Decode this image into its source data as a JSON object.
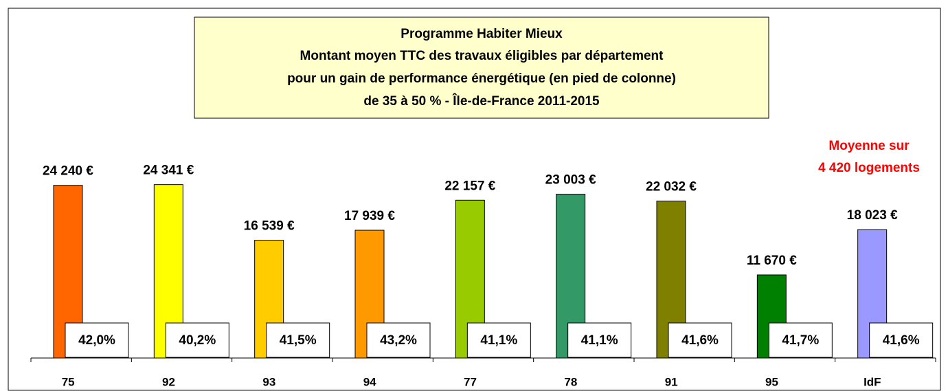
{
  "chart_data": {
    "type": "bar",
    "title": [
      "Programme Habiter Mieux",
      "Montant moyen TTC des travaux éligibles par département",
      "pour un gain de performance énergétique (en pied de colonne)",
      "de 35 à 50 % - Île-de-France 2011-2015"
    ],
    "categories": [
      "75",
      "92",
      "93",
      "94",
      "77",
      "78",
      "91",
      "95",
      "IdF"
    ],
    "values": [
      24240,
      24341,
      16539,
      17939,
      22157,
      23003,
      22032,
      11670,
      18023
    ],
    "value_labels": [
      "24 240 €",
      "24 341 €",
      "16 539 €",
      "17 939 €",
      "22 157 €",
      "23 003 €",
      "22 032 €",
      "11 670 €",
      "18 023 €"
    ],
    "colors": [
      "#ff6600",
      "#ffff00",
      "#ffcc00",
      "#ff9900",
      "#99cc00",
      "#339966",
      "#808000",
      "#008000",
      "#9999ff"
    ],
    "gain_values": [
      42.0,
      40.2,
      41.5,
      43.2,
      41.1,
      41.1,
      41.6,
      41.7,
      41.6
    ],
    "gain_labels": [
      "42,0%",
      "40,2%",
      "41,5%",
      "43,2%",
      "41,1%",
      "41,1%",
      "41,6%",
      "41,7%",
      "41,6%"
    ],
    "annotation": [
      "Moyenne sur",
      "4 420 logements"
    ],
    "ylim": [
      0,
      30000
    ]
  }
}
